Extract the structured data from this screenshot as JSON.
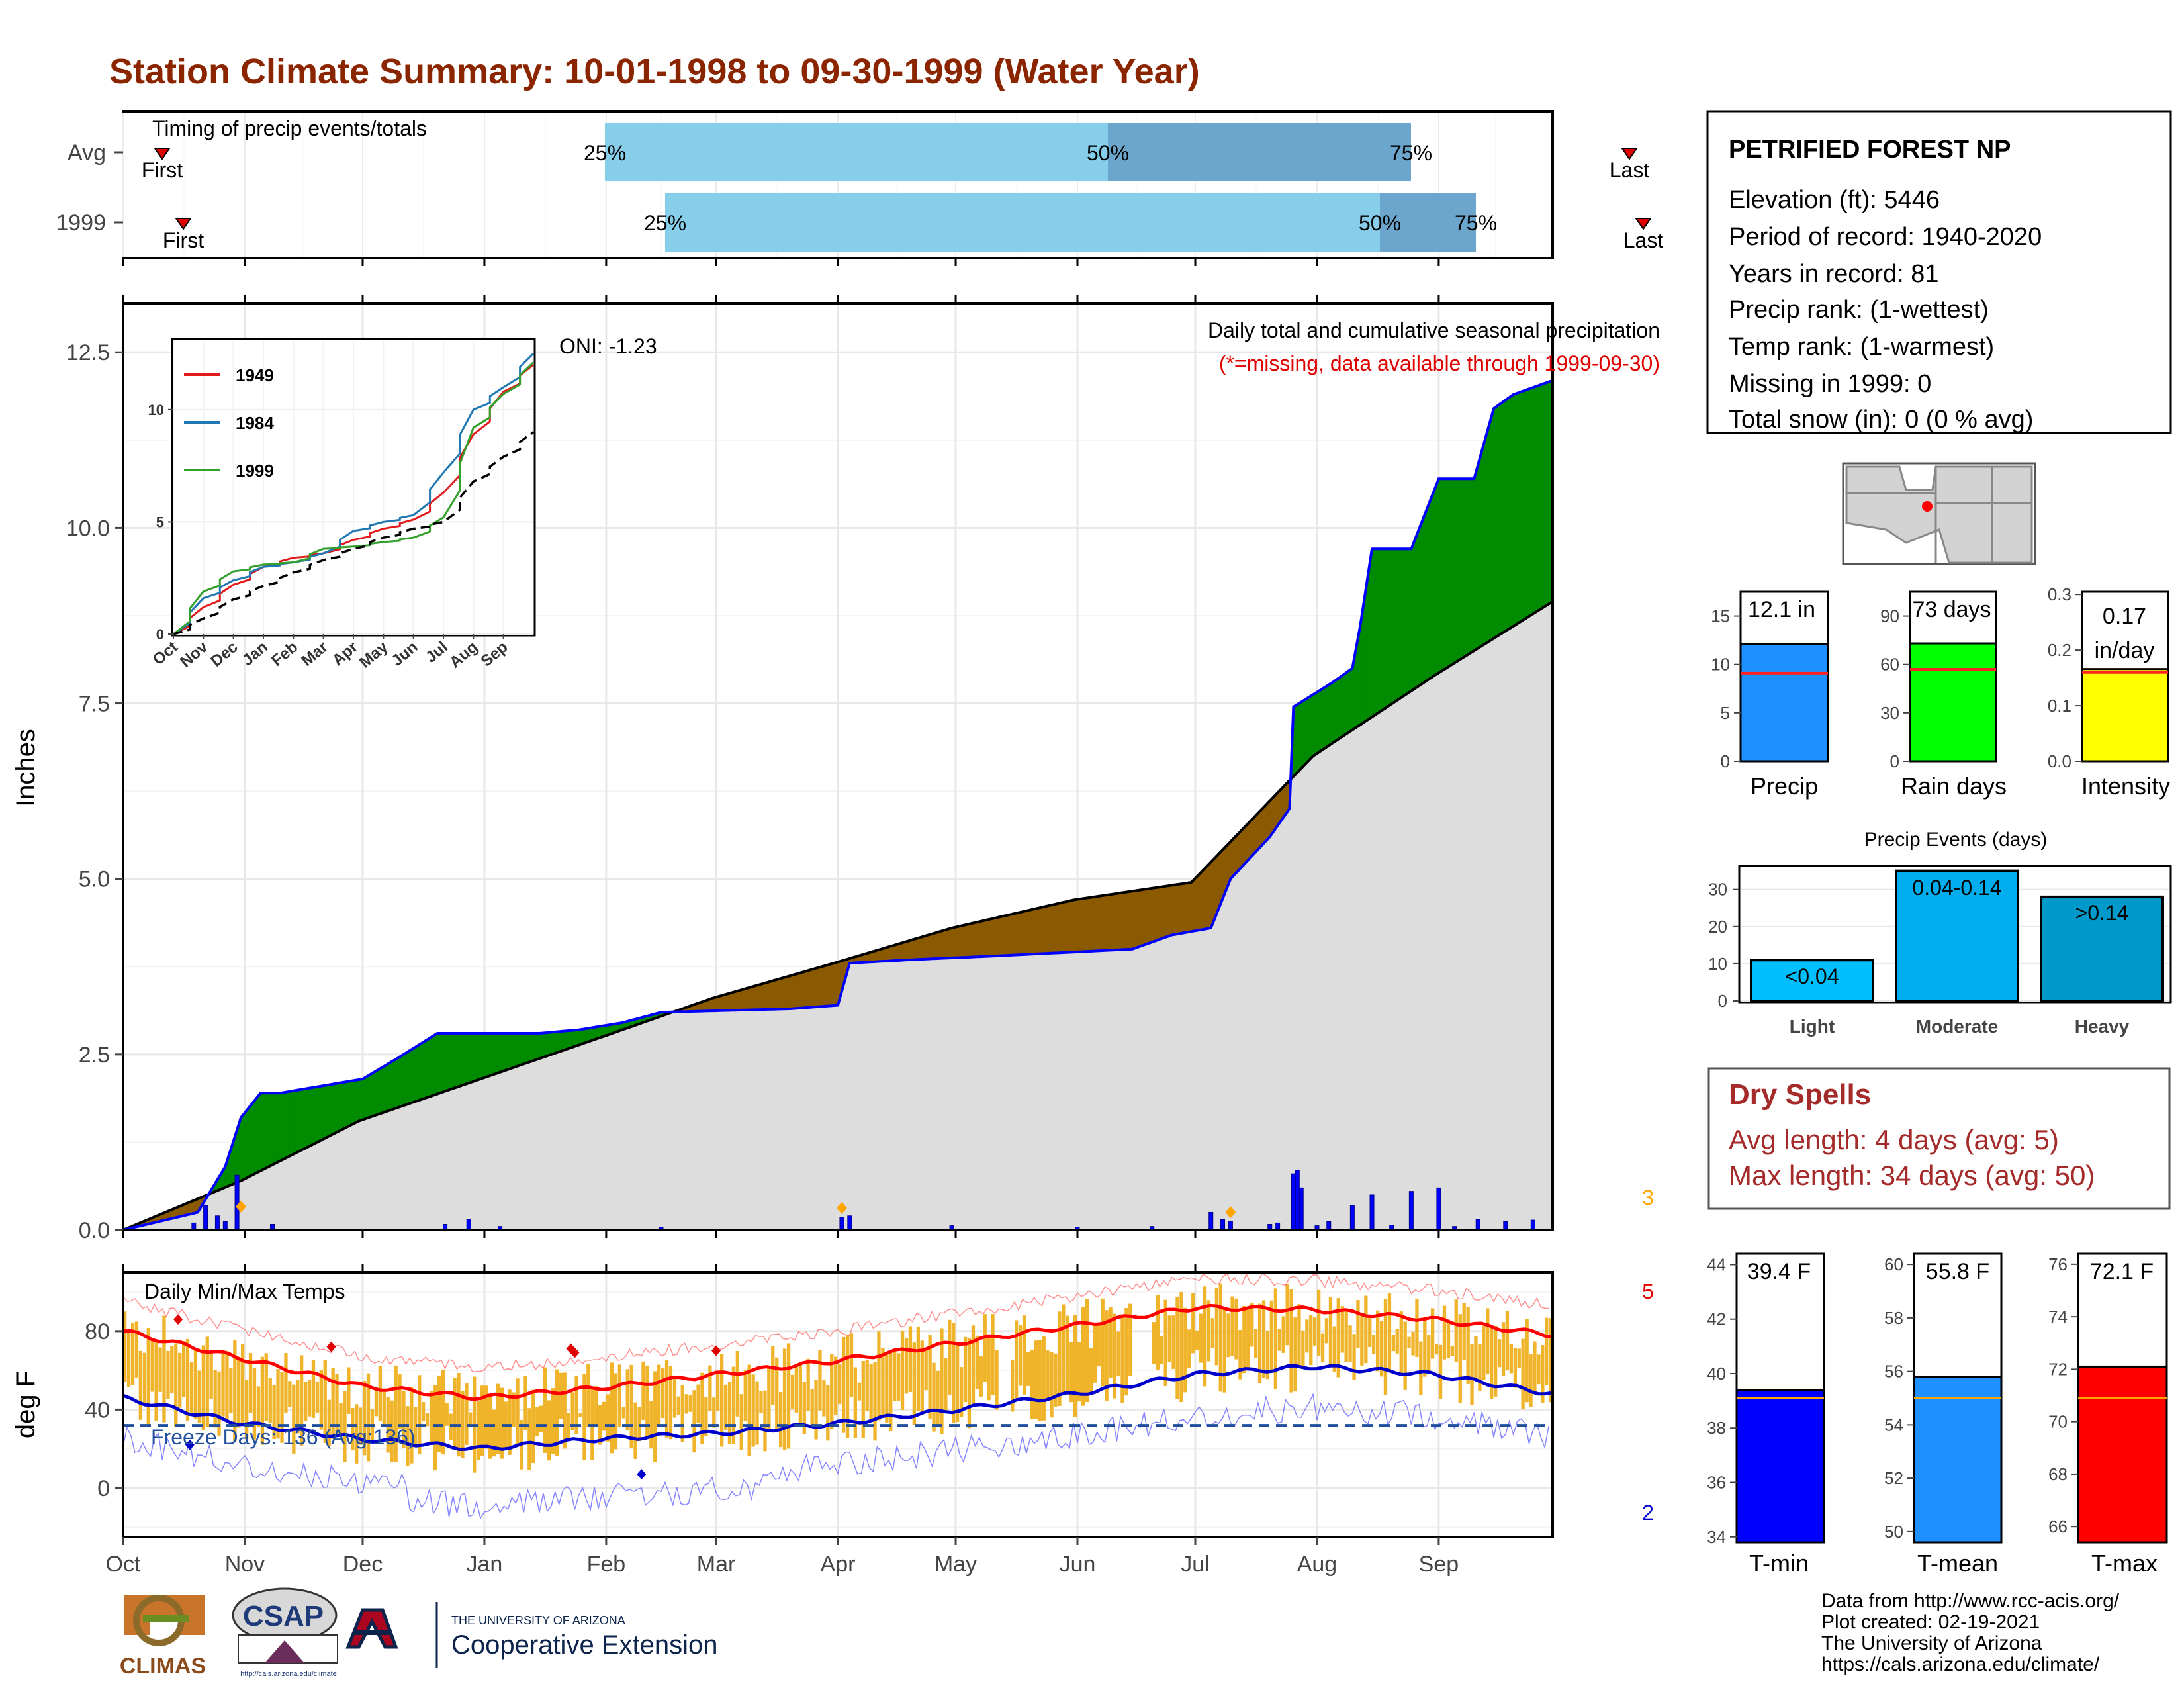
{
  "title": "Station Climate Summary: 10-01-1998 to 09-30-1999 (Water Year)",
  "colors": {
    "title": "#8B2500",
    "q1": "#87CEEB",
    "q2": "#6CA6CD",
    "above": "#008B00",
    "below": "#8B5A00",
    "avg_fill": "#DDDDDD",
    "daily": "#0000FF",
    "temp_bar": "#F0B42A",
    "tmax_line": "#FF0000",
    "tmin_line": "#0000CC",
    "precip_bar": "#1E90FF",
    "rain_bar": "#00FF00",
    "intensity_bar": "#FFFF00",
    "dry": "#A52A2A",
    "tmean_bar": "#1E90FF"
  },
  "timing": {
    "label": "Timing of precip events/totals",
    "rows": [
      {
        "name": "Avg",
        "first": "First",
        "last": "Last",
        "p25": "25%",
        "p50": "50%",
        "p75": "75%"
      },
      {
        "name": "1999",
        "first": "First",
        "last": "Last",
        "p25": "25%",
        "p50": "50%",
        "p75": "75%"
      }
    ]
  },
  "station": {
    "name": "PETRIFIED FOREST NP",
    "lines": [
      "Elevation (ft): 5446",
      "Period of record: 1940-2020",
      "Years in record: 81",
      "Precip rank:  (1-wettest)",
      "Temp rank:  (1-warmest)",
      "Missing in 1999: 0",
      "Total snow (in): 0 (0 % avg)"
    ]
  },
  "precip_panel": {
    "ylabel": "Inches",
    "oni": "ONI: -1.23",
    "note": "Daily total and cumulative seasonal precipitation",
    "missing_note": "(*=missing, data available through 1999-09-30)",
    "count": "3",
    "yticks": [
      "0.0",
      "2.5",
      "5.0",
      "7.5",
      "10.0",
      "12.5"
    ]
  },
  "months": [
    "Oct",
    "Nov",
    "Dec",
    "Jan",
    "Feb",
    "Mar",
    "Apr",
    "May",
    "Jun",
    "Jul",
    "Aug",
    "Sep"
  ],
  "inset": {
    "yticks": [
      "0",
      "5",
      "10"
    ],
    "months": [
      "Oct",
      "Nov",
      "Dec",
      "Jan",
      "Feb",
      "Mar",
      "Apr",
      "May",
      "Jun",
      "Jul",
      "Aug",
      "Sep"
    ],
    "legend": [
      {
        "name": "1949",
        "color": "#E31A1C"
      },
      {
        "name": "1984",
        "color": "#1F78B4"
      },
      {
        "name": "1999",
        "color": "#33A02C"
      }
    ]
  },
  "temp_panel": {
    "ylabel": "deg F",
    "label": "Daily Min/Max Temps",
    "freeze": "Freeze Days: 136 (Avg:136)",
    "max_count": "5",
    "min_count": "2",
    "yticks": [
      "0",
      "40",
      "80"
    ]
  },
  "bar_panels": [
    {
      "label": "Precip",
      "value_text": "12.1 in",
      "yticks": [
        "0",
        "5",
        "10",
        "15"
      ],
      "value": 12.1,
      "avg": 9.1,
      "ymin": 0,
      "ymax": 17.5
    },
    {
      "label": "Rain days",
      "value_text": "73 days",
      "yticks": [
        "0",
        "30",
        "60",
        "90"
      ],
      "value": 73,
      "avg": 57,
      "ymin": 0,
      "ymax": 105
    },
    {
      "label": "Intensity",
      "value_text_line1": "0.17",
      "value_text_line2": "in/day",
      "yticks": [
        "0.0",
        "0.1",
        "0.2",
        "0.3"
      ],
      "value": 0.166,
      "avg": 0.16,
      "ymin": 0,
      "ymax": 0.305
    }
  ],
  "events": {
    "title": "Precip Events (days)",
    "yticks": [
      "0",
      "10",
      "20",
      "30"
    ],
    "categories": [
      "Light",
      "Moderate",
      "Heavy"
    ],
    "labels": [
      "<0.04",
      "0.04-0.14",
      ">0.14"
    ],
    "values": [
      11,
      35,
      28
    ]
  },
  "dry_spells": {
    "title": "Dry Spells",
    "avg": "Avg length: 4 days (avg: 5)",
    "max": "Max length: 34 days (avg: 50)"
  },
  "temp_bars": [
    {
      "label": "T-min",
      "value_text": "39.4 F",
      "yticks": [
        "34",
        "36",
        "38",
        "40",
        "42",
        "44"
      ],
      "value": 39.4,
      "avg": 39.1,
      "ymin": 33.8,
      "ymax": 44.4
    },
    {
      "label": "T-mean",
      "value_text": "55.8 F",
      "yticks": [
        "50",
        "52",
        "54",
        "56",
        "58",
        "60"
      ],
      "value": 55.8,
      "avg": 55.0,
      "ymin": 49.6,
      "ymax": 60.4
    },
    {
      "label": "T-max",
      "value_text": "72.1 F",
      "yticks": [
        "66",
        "68",
        "70",
        "72",
        "74",
        "76"
      ],
      "value": 72.1,
      "avg": 70.9,
      "ymin": 65.4,
      "ymax": 76.4
    }
  ],
  "credits": [
    "Data from http://www.rcc-acis.org/",
    "Plot created: 02-19-2021",
    "The University of Arizona",
    "https://cals.arizona.edu/climate/"
  ],
  "logos": {
    "climas": "CLIMAS",
    "csap": "CSAP",
    "csap_url": "http://cals.arizona.edu/climate",
    "ua_line1": "THE UNIVERSITY OF ARIZONA",
    "ua_line2": "Cooperative Extension"
  },
  "chart_data": [
    {
      "type": "area",
      "title": "Daily total and cumulative seasonal precipitation",
      "ylabel": "Inches",
      "ylim": [
        0,
        13.2
      ],
      "x_unit": "date",
      "x_range": [
        "1998-10-01",
        "1999-09-30"
      ],
      "series": [
        {
          "name": "1999",
          "x": [
            "1998-10-01",
            "1998-10-20",
            "1998-10-27",
            "1998-10-31",
            "1998-11-05",
            "1998-11-10",
            "1998-12-01",
            "1998-12-10",
            "1998-12-20",
            "1999-01-15",
            "1999-01-25",
            "1999-02-05",
            "1999-02-15",
            "1999-03-20",
            "1999-04-01",
            "1999-04-04",
            "1999-04-20",
            "1999-05-10",
            "1999-06-15",
            "1999-06-25",
            "1999-07-05",
            "1999-07-10",
            "1999-07-20",
            "1999-07-25",
            "1999-07-26",
            "1999-08-05",
            "1999-08-10",
            "1999-08-12",
            "1999-08-15",
            "1999-08-25",
            "1999-09-01",
            "1999-09-05",
            "1999-09-10",
            "1999-09-15",
            "1999-09-20",
            "1999-09-30"
          ],
          "values": [
            0,
            0.25,
            0.9,
            1.6,
            1.95,
            1.95,
            2.15,
            2.45,
            2.8,
            2.8,
            2.85,
            2.95,
            3.1,
            3.15,
            3.2,
            3.8,
            3.85,
            3.9,
            4.0,
            4.2,
            4.3,
            5.0,
            5.6,
            6.0,
            7.45,
            7.8,
            8.0,
            8.6,
            9.7,
            9.7,
            10.7,
            10.7,
            10.7,
            11.7,
            11.9,
            12.1
          ]
        },
        {
          "name": "Avg",
          "x": [
            "1998-10-01",
            "1998-10-31",
            "1998-11-30",
            "1998-12-31",
            "1999-01-31",
            "1999-02-28",
            "1999-03-31",
            "1999-04-30",
            "1999-05-31",
            "1999-06-30",
            "1999-07-31",
            "1999-08-31",
            "1999-09-30"
          ],
          "values": [
            0,
            0.7,
            1.55,
            2.15,
            2.75,
            3.3,
            3.8,
            4.3,
            4.7,
            4.95,
            6.75,
            7.9,
            8.95
          ]
        }
      ],
      "daily_precip": {
        "x": [
          "1998-10-19",
          "1998-10-22",
          "1998-10-25",
          "1998-10-27",
          "1998-10-30",
          "1998-11-08",
          "1998-12-22",
          "1998-12-28",
          "1999-01-05",
          "1999-02-15",
          "1999-04-02",
          "1999-04-04",
          "1999-04-30",
          "1999-06-01",
          "1999-06-20",
          "1999-07-05",
          "1999-07-08",
          "1999-07-10",
          "1999-07-20",
          "1999-07-22",
          "1999-07-26",
          "1999-07-27",
          "1999-07-28",
          "1999-08-01",
          "1999-08-04",
          "1999-08-10",
          "1999-08-15",
          "1999-08-20",
          "1999-08-25",
          "1999-09-01",
          "1999-09-05",
          "1999-09-11",
          "1999-09-18",
          "1999-09-25"
        ],
        "values": [
          0.1,
          0.35,
          0.2,
          0.12,
          0.78,
          0.08,
          0.08,
          0.15,
          0.05,
          0.04,
          0.18,
          0.2,
          0.06,
          0.04,
          0.05,
          0.25,
          0.15,
          0.12,
          0.08,
          0.1,
          0.8,
          0.85,
          0.6,
          0.06,
          0.12,
          0.35,
          0.5,
          0.07,
          0.55,
          0.6,
          0.05,
          0.15,
          0.12,
          0.14
        ]
      },
      "month_ticks": [
        "Oct",
        "Nov",
        "Dec",
        "Jan",
        "Feb",
        "Mar",
        "Apr",
        "May",
        "Jun",
        "Jul",
        "Aug",
        "Sep"
      ]
    },
    {
      "type": "line",
      "title": "",
      "xlabel": "",
      "ylim": [
        0,
        13
      ],
      "x_unit": "month",
      "x": [
        "Oct",
        "Nov",
        "Dec",
        "Jan",
        "Feb",
        "Mar",
        "Apr",
        "May",
        "Jun",
        "Jul",
        "Aug",
        "Sep",
        "Oct"
      ],
      "series": [
        {
          "name": "1949",
          "values": [
            0,
            1.2,
            2.2,
            3.0,
            3.4,
            3.6,
            4.2,
            4.7,
            5.1,
            6.3,
            8.9,
            10.8,
            12.0
          ]
        },
        {
          "name": "1984",
          "values": [
            0,
            1.6,
            2.4,
            3.0,
            3.2,
            3.6,
            4.6,
            5.0,
            5.3,
            7.2,
            10.0,
            11.0,
            12.5
          ]
        },
        {
          "name": "1999",
          "values": [
            0,
            1.9,
            2.8,
            3.1,
            3.2,
            3.8,
            3.9,
            4.1,
            4.3,
            5.2,
            9.2,
            10.7,
            12.1
          ]
        },
        {
          "name": "Avg",
          "values": [
            0,
            0.7,
            1.55,
            2.15,
            2.75,
            3.3,
            3.8,
            4.3,
            4.7,
            5.0,
            6.8,
            7.9,
            9.0
          ]
        }
      ]
    },
    {
      "type": "line",
      "title": "Daily Min/Max Temps",
      "ylabel": "deg F",
      "ylim": [
        -25,
        110
      ],
      "x_unit": "month",
      "x": [
        "Oct",
        "Nov",
        "Dec",
        "Jan",
        "Feb",
        "Mar",
        "Apr",
        "May",
        "Jun",
        "Jul",
        "Aug",
        "Sep",
        "Sep end"
      ],
      "series": [
        {
          "name": "Avg max",
          "values": [
            80,
            66,
            52,
            46,
            51,
            58,
            65,
            74,
            83,
            92,
            91,
            86,
            78
          ]
        },
        {
          "name": "Avg min",
          "values": [
            46,
            33,
            25,
            20,
            25,
            28,
            33,
            40,
            48,
            58,
            62,
            58,
            48
          ]
        }
      ],
      "freeze_line": 32
    },
    {
      "type": "bar",
      "title": "Precip",
      "categories": [
        "1999"
      ],
      "values": [
        12.1
      ],
      "avg": 9.1,
      "ylim": [
        0,
        17.5
      ]
    },
    {
      "type": "bar",
      "title": "Rain days",
      "categories": [
        "1999"
      ],
      "values": [
        73
      ],
      "avg": 57,
      "ylim": [
        0,
        105
      ]
    },
    {
      "type": "bar",
      "title": "Intensity",
      "categories": [
        "1999"
      ],
      "values": [
        0.17
      ],
      "avg": 0.16,
      "ylim": [
        0,
        0.305
      ]
    },
    {
      "type": "bar",
      "title": "Precip Events (days)",
      "categories": [
        "Light",
        "Moderate",
        "Heavy"
      ],
      "values": [
        11,
        35,
        28
      ],
      "ylim": [
        0,
        35
      ]
    },
    {
      "type": "bar",
      "title": "T-min",
      "categories": [
        "1999"
      ],
      "values": [
        39.4
      ],
      "avg": 39.1,
      "ylim": [
        33.8,
        44.4
      ]
    },
    {
      "type": "bar",
      "title": "T-mean",
      "categories": [
        "1999"
      ],
      "values": [
        55.8
      ],
      "avg": 55.0,
      "ylim": [
        49.6,
        60.4
      ]
    },
    {
      "type": "bar",
      "title": "T-max",
      "categories": [
        "1999"
      ],
      "values": [
        72.1
      ],
      "avg": 70.9,
      "ylim": [
        65.4,
        76.4
      ]
    }
  ]
}
